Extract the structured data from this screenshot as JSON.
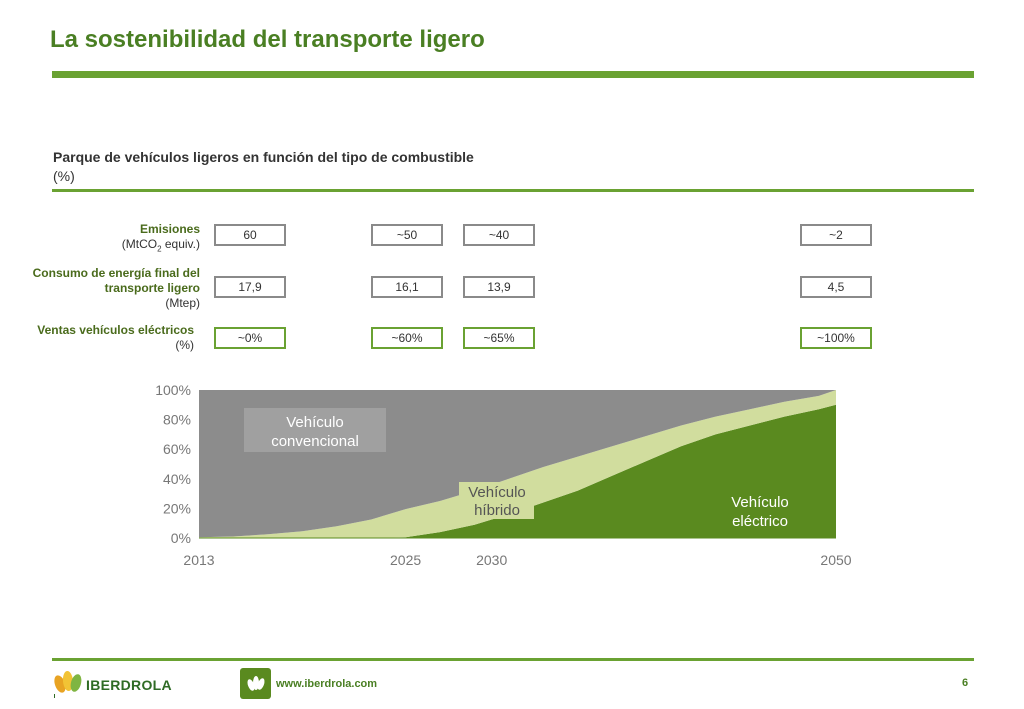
{
  "slide": {
    "title": "La sostenibilidad del transporte ligero",
    "chart_heading": "Parque de vehículos ligeros en función del tipo de combustible",
    "chart_unit": "(%)"
  },
  "rows": [
    {
      "label_bold": "Emisiones",
      "label_sub": "(MtCO2 equiv.)",
      "values": [
        "60",
        "~50",
        "~40",
        "~2"
      ]
    },
    {
      "label_bold": "Consumo de energía final del transporte ligero",
      "label_sub": "(Mtep)",
      "values": [
        "17,9",
        "16,1",
        "13,9",
        "4,5"
      ]
    },
    {
      "label_bold": "Ventas vehículos eléctricos",
      "label_sub": "(%)",
      "values": [
        "~0%",
        "~60%",
        "~65%",
        "~100%"
      ]
    }
  ],
  "chart_data": {
    "type": "area",
    "stacked": true,
    "x": [
      2013,
      2015,
      2017,
      2019,
      2021,
      2023,
      2025,
      2027,
      2029,
      2031,
      2033,
      2035,
      2037,
      2039,
      2041,
      2043,
      2045,
      2047,
      2049,
      2050
    ],
    "xticks": [
      "2013",
      "2025",
      "2030",
      "2050"
    ],
    "yticks": [
      "0%",
      "20%",
      "40%",
      "60%",
      "80%",
      "100%"
    ],
    "ylim": [
      0,
      100
    ],
    "series": [
      {
        "name": "Vehículo eléctrico",
        "color": "#5a8a1f",
        "values": [
          0,
          0,
          0,
          0,
          0,
          0,
          0.5,
          4,
          9,
          16,
          24,
          32,
          42,
          52,
          62,
          70,
          76,
          82,
          87,
          90
        ]
      },
      {
        "name": "Vehículo híbrido",
        "color": "#d1dd9e",
        "values": [
          0.5,
          1,
          2.5,
          4.5,
          8,
          12.5,
          19,
          21,
          23,
          24,
          24,
          23,
          20,
          17,
          14,
          12,
          11,
          10,
          9,
          10
        ]
      },
      {
        "name": "Vehículo convencional",
        "color": "#8c8c8c",
        "values": [
          99.5,
          99,
          97.5,
          95.5,
          92,
          87.5,
          80.5,
          75,
          68,
          60,
          52,
          45,
          38,
          31,
          24,
          18,
          13,
          8,
          4,
          0
        ]
      }
    ],
    "annotations": [
      {
        "text_lines": [
          "Vehículo",
          "convencional"
        ]
      },
      {
        "text_lines": [
          "Vehículo",
          "híbrido"
        ]
      },
      {
        "text_lines": [
          "Vehículo",
          "eléctrico"
        ]
      }
    ]
  },
  "footer": {
    "brand": "IBERDROLA",
    "website": "www.iberdrola.com",
    "page_number": "6"
  }
}
